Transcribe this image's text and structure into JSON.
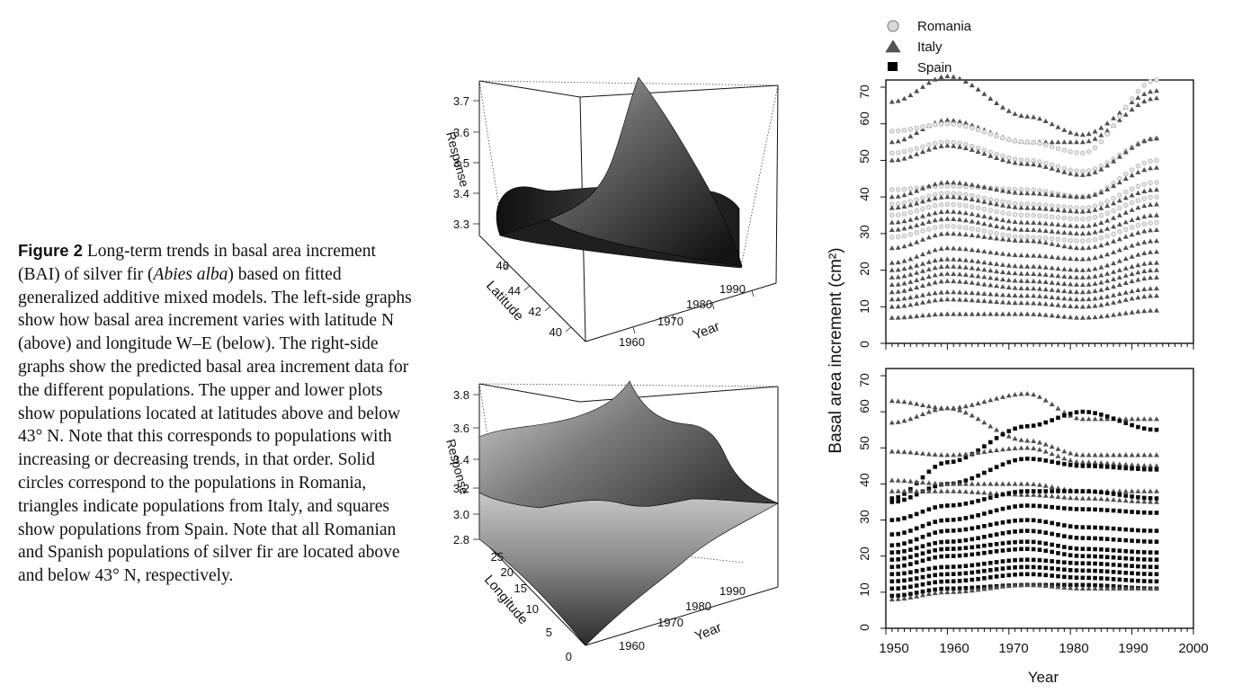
{
  "caption": {
    "label": "Figure 2",
    "part1": " Long-term trends in basal area increment (BAI) of silver fir (",
    "species": "Abies alba",
    "part2": ") based on fitted generalized additive mixed models. The left-side graphs show how basal area increment varies with latitude N (above) and longitude W–E (below). The right-side graphs show the predicted basal area increment data for the different populations. The upper and lower plots show populations located at latitudes above and below 43° N. Note that this corresponds to populations with increasing or decreasing trends, in that order. Solid circles correspond to the populations in Romania, triangles indicate populations from Italy, and squares show populations from Spain. Note that all Romanian and Spanish populations of silver fir are located above and below 43° N, respectively."
  },
  "colors": {
    "romania": "#b8b8b8",
    "italy": "#505050",
    "spain": "#0a0a0a",
    "surface_dark": "#1a1a1a",
    "surface_light": "#c4c4c4"
  },
  "chart_data": [
    {
      "type": "surface",
      "panel": "3d-latitude",
      "zlabel": "Response",
      "ylabel": "Latitude",
      "xlabel": "Year",
      "z_ticks": [
        "3.3",
        "3.4",
        "3.5",
        "3.6",
        "3.7"
      ],
      "lat_ticks": [
        "40",
        "42",
        "44",
        "46"
      ],
      "year_ticks": [
        "1960",
        "1970",
        "1980",
        "1990"
      ]
    },
    {
      "type": "surface",
      "panel": "3d-longitude",
      "zlabel": "Response",
      "ylabel": "Longitude",
      "xlabel": "Year",
      "z_ticks": [
        "2.8",
        "3.0",
        "3.2",
        "3.4",
        "3.6",
        "3.8"
      ],
      "lon_ticks": [
        "0",
        "5",
        "10",
        "15",
        "20",
        "25"
      ],
      "year_ticks": [
        "1960",
        "1970",
        "1980",
        "1990"
      ]
    },
    {
      "type": "scatter",
      "panel": "bai-upper",
      "xlim": [
        1950,
        2000
      ],
      "ylim": [
        0,
        70
      ],
      "y_ticks": [
        "0",
        "10",
        "20",
        "30",
        "40",
        "50",
        "60",
        "70"
      ],
      "legend": [
        "Romania",
        "Italy",
        "Spain"
      ],
      "series": [
        {
          "country": "Italy",
          "values": [
            66,
            73,
            62,
            57,
            69
          ]
        },
        {
          "country": "Italy",
          "values": [
            55,
            61,
            55,
            55,
            67
          ]
        },
        {
          "country": "Romania",
          "values": [
            58,
            60,
            55,
            52,
            72
          ]
        },
        {
          "country": "Romania",
          "values": [
            52,
            55,
            50,
            47,
            56
          ]
        },
        {
          "country": "Italy",
          "values": [
            50,
            54,
            49,
            46,
            56
          ]
        },
        {
          "country": "Romania",
          "values": [
            42,
            43,
            42,
            40,
            50
          ]
        },
        {
          "country": "Italy",
          "values": [
            40,
            44,
            41,
            40,
            48
          ]
        },
        {
          "country": "Romania",
          "values": [
            38,
            41,
            38,
            37,
            44
          ]
        },
        {
          "country": "Italy",
          "values": [
            37,
            40,
            37,
            36,
            42
          ]
        },
        {
          "country": "Romania",
          "values": [
            35,
            38,
            35,
            34,
            40
          ]
        },
        {
          "country": "Italy",
          "values": [
            33,
            36,
            33,
            32,
            38
          ]
        },
        {
          "country": "Italy",
          "values": [
            31,
            34,
            31,
            30,
            35
          ]
        },
        {
          "country": "Romania",
          "values": [
            29,
            32,
            29,
            28,
            33
          ]
        },
        {
          "country": "Italy",
          "values": [
            26,
            30,
            28,
            26,
            31
          ]
        },
        {
          "country": "Italy",
          "values": [
            22,
            26,
            24,
            23,
            28
          ]
        },
        {
          "country": "Italy",
          "values": [
            20,
            23,
            21,
            20,
            25
          ]
        },
        {
          "country": "Italy",
          "values": [
            18,
            21,
            19,
            18,
            22
          ]
        },
        {
          "country": "Italy",
          "values": [
            16,
            19,
            17,
            16,
            20
          ]
        },
        {
          "country": "Italy",
          "values": [
            14,
            17,
            15,
            14,
            18
          ]
        },
        {
          "country": "Italy",
          "values": [
            12,
            14,
            13,
            12,
            15
          ]
        },
        {
          "country": "Italy",
          "values": [
            10,
            12,
            11,
            10,
            13
          ]
        },
        {
          "country": "Italy",
          "values": [
            7,
            8,
            8,
            7,
            9
          ]
        }
      ]
    },
    {
      "type": "scatter",
      "panel": "bai-lower",
      "xlim": [
        1950,
        2000
      ],
      "ylim": [
        0,
        70
      ],
      "y_ticks": [
        "0",
        "10",
        "20",
        "30",
        "40",
        "50",
        "60",
        "70"
      ],
      "x_ticks": [
        "1950",
        "1960",
        "1970",
        "1980",
        "1990",
        "2000"
      ],
      "xlabel": "Year",
      "ylabel": "Basal area increment (cm²)",
      "series": [
        {
          "country": "Italy",
          "values": [
            63,
            61,
            65,
            58,
            58
          ]
        },
        {
          "country": "Italy",
          "values": [
            57,
            61,
            52,
            48,
            48
          ]
        },
        {
          "country": "Spain",
          "values": [
            36,
            46,
            56,
            60,
            55
          ]
        },
        {
          "country": "Italy",
          "values": [
            49,
            48,
            50,
            46,
            45
          ]
        },
        {
          "country": "Spain",
          "values": [
            35,
            40,
            47,
            45,
            44
          ]
        },
        {
          "country": "Italy",
          "values": [
            41,
            40,
            40,
            38,
            38
          ]
        },
        {
          "country": "Italy",
          "values": [
            38,
            38,
            37,
            36,
            35
          ]
        },
        {
          "country": "Spain",
          "values": [
            30,
            34,
            38,
            38,
            36
          ]
        },
        {
          "country": "Spain",
          "values": [
            26,
            30,
            34,
            33,
            32
          ]
        },
        {
          "country": "Spain",
          "values": [
            23,
            27,
            30,
            28,
            27
          ]
        },
        {
          "country": "Spain",
          "values": [
            21,
            24,
            27,
            25,
            24
          ]
        },
        {
          "country": "Spain",
          "values": [
            19,
            22,
            24,
            22,
            21
          ]
        },
        {
          "country": "Spain",
          "values": [
            17,
            20,
            22,
            20,
            19
          ]
        },
        {
          "country": "Spain",
          "values": [
            15,
            17,
            19,
            18,
            17
          ]
        },
        {
          "country": "Spain",
          "values": [
            13,
            15,
            17,
            16,
            15
          ]
        },
        {
          "country": "Spain",
          "values": [
            11,
            13,
            15,
            14,
            13
          ]
        },
        {
          "country": "Spain",
          "values": [
            9,
            11,
            12,
            12,
            11
          ]
        },
        {
          "country": "Italy",
          "values": [
            8,
            10,
            12,
            11,
            11
          ]
        }
      ]
    }
  ]
}
